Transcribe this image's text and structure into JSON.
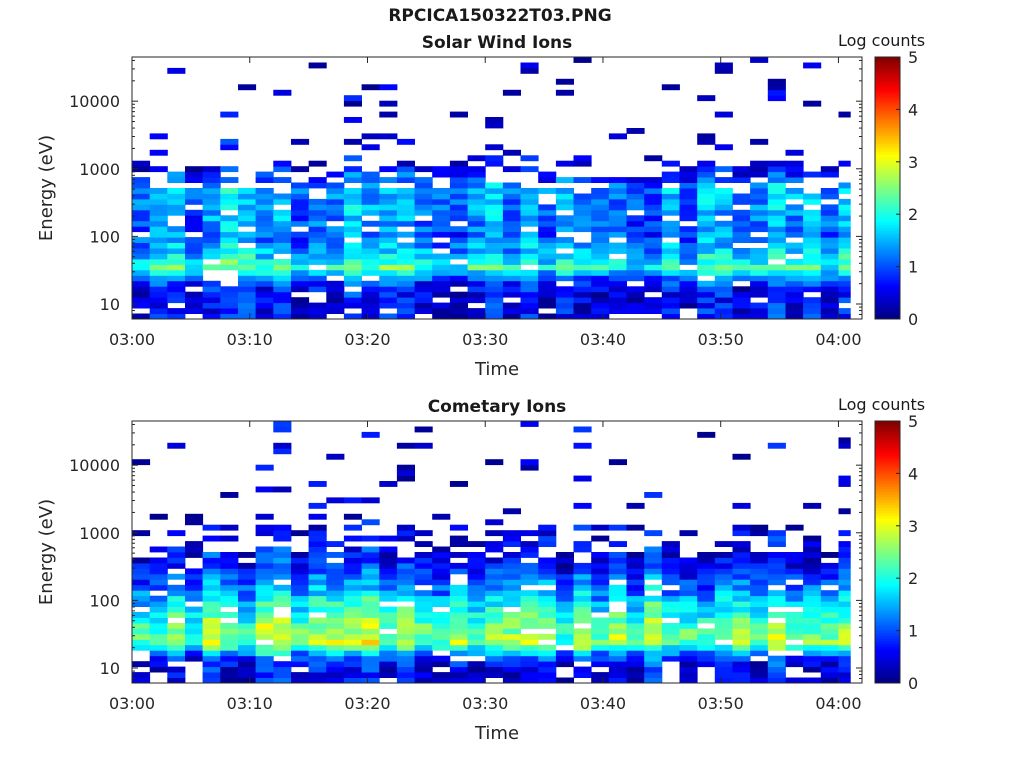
{
  "figure": {
    "title": "RPCICA150322T03.PNG"
  },
  "colorbar": {
    "label": "Log counts",
    "ticks": [
      "0",
      "1",
      "2",
      "3",
      "4",
      "5"
    ],
    "colormap": [
      "#00007f",
      "#0000ff",
      "#007fff",
      "#00ffff",
      "#7fff7f",
      "#ffff00",
      "#ff7f00",
      "#ff0000",
      "#7f0000"
    ]
  },
  "chart_data": [
    {
      "type": "heatmap",
      "title": "Solar Wind Ions",
      "xlabel": "Time",
      "ylabel": "Energy (eV)",
      "x_ticks": [
        "03:00",
        "03:10",
        "03:20",
        "03:30",
        "03:40",
        "03:50",
        "04:00"
      ],
      "y_ticks": [
        "10",
        "100",
        "1000",
        "10000"
      ],
      "y_scale": "log",
      "ylim": [
        6,
        45000
      ],
      "xlim": [
        "03:00",
        "04:02"
      ],
      "z_label": "Log counts",
      "zlim": [
        0,
        5
      ],
      "time_bins_minutes": [
        0,
        1.5,
        3,
        4.5,
        6,
        7.5,
        9,
        10.5,
        12,
        13.5,
        15,
        16.5,
        18,
        19.5,
        21,
        22.5,
        24,
        25.5,
        27,
        28.5,
        30,
        31.5,
        33,
        34.5,
        36,
        37.5,
        39,
        40.5,
        42,
        43.5,
        45,
        46.5,
        48,
        49.5,
        51,
        52.5,
        54,
        55.5,
        57,
        58.5,
        60
      ],
      "energy_profile": [
        {
          "energy_eV": 15,
          "log_counts": 0.6
        },
        {
          "energy_eV": 22,
          "log_counts": 1.0
        },
        {
          "energy_eV": 35,
          "log_counts": 2.2
        },
        {
          "energy_eV": 60,
          "log_counts": 1.6
        },
        {
          "energy_eV": 100,
          "log_counts": 1.2
        },
        {
          "energy_eV": 200,
          "log_counts": 1.3
        },
        {
          "energy_eV": 500,
          "log_counts": 1.5
        },
        {
          "energy_eV": 1200,
          "log_counts": 0.4
        },
        {
          "energy_eV": 5000,
          "log_counts": 0.2
        },
        {
          "energy_eV": 20000,
          "log_counts": 0.1
        }
      ]
    },
    {
      "type": "heatmap",
      "title": "Cometary Ions",
      "xlabel": "Time",
      "ylabel": "Energy (eV)",
      "x_ticks": [
        "03:00",
        "03:10",
        "03:20",
        "03:30",
        "03:40",
        "03:50",
        "04:00"
      ],
      "y_ticks": [
        "10",
        "100",
        "1000",
        "10000"
      ],
      "y_scale": "log",
      "ylim": [
        6,
        45000
      ],
      "xlim": [
        "03:00",
        "04:02"
      ],
      "z_label": "Log counts",
      "zlim": [
        0,
        5
      ],
      "time_bins_minutes": [
        0,
        1.5,
        3,
        4.5,
        6,
        7.5,
        9,
        10.5,
        12,
        13.5,
        15,
        16.5,
        18,
        19.5,
        21,
        22.5,
        24,
        25.5,
        27,
        28.5,
        30,
        31.5,
        33,
        34.5,
        36,
        37.5,
        39,
        40.5,
        42,
        43.5,
        45,
        46.5,
        48,
        49.5,
        51,
        52.5,
        54,
        55.5,
        57,
        58.5,
        60
      ],
      "energy_profile": [
        {
          "energy_eV": 10,
          "log_counts": 0.4
        },
        {
          "energy_eV": 15,
          "log_counts": 1.1
        },
        {
          "energy_eV": 25,
          "log_counts": 2.7
        },
        {
          "energy_eV": 40,
          "log_counts": 2.4
        },
        {
          "energy_eV": 70,
          "log_counts": 2.0
        },
        {
          "energy_eV": 150,
          "log_counts": 1.3
        },
        {
          "energy_eV": 400,
          "log_counts": 0.6
        },
        {
          "energy_eV": 1500,
          "log_counts": 0.2
        },
        {
          "energy_eV": 8000,
          "log_counts": 0.1
        }
      ]
    }
  ]
}
